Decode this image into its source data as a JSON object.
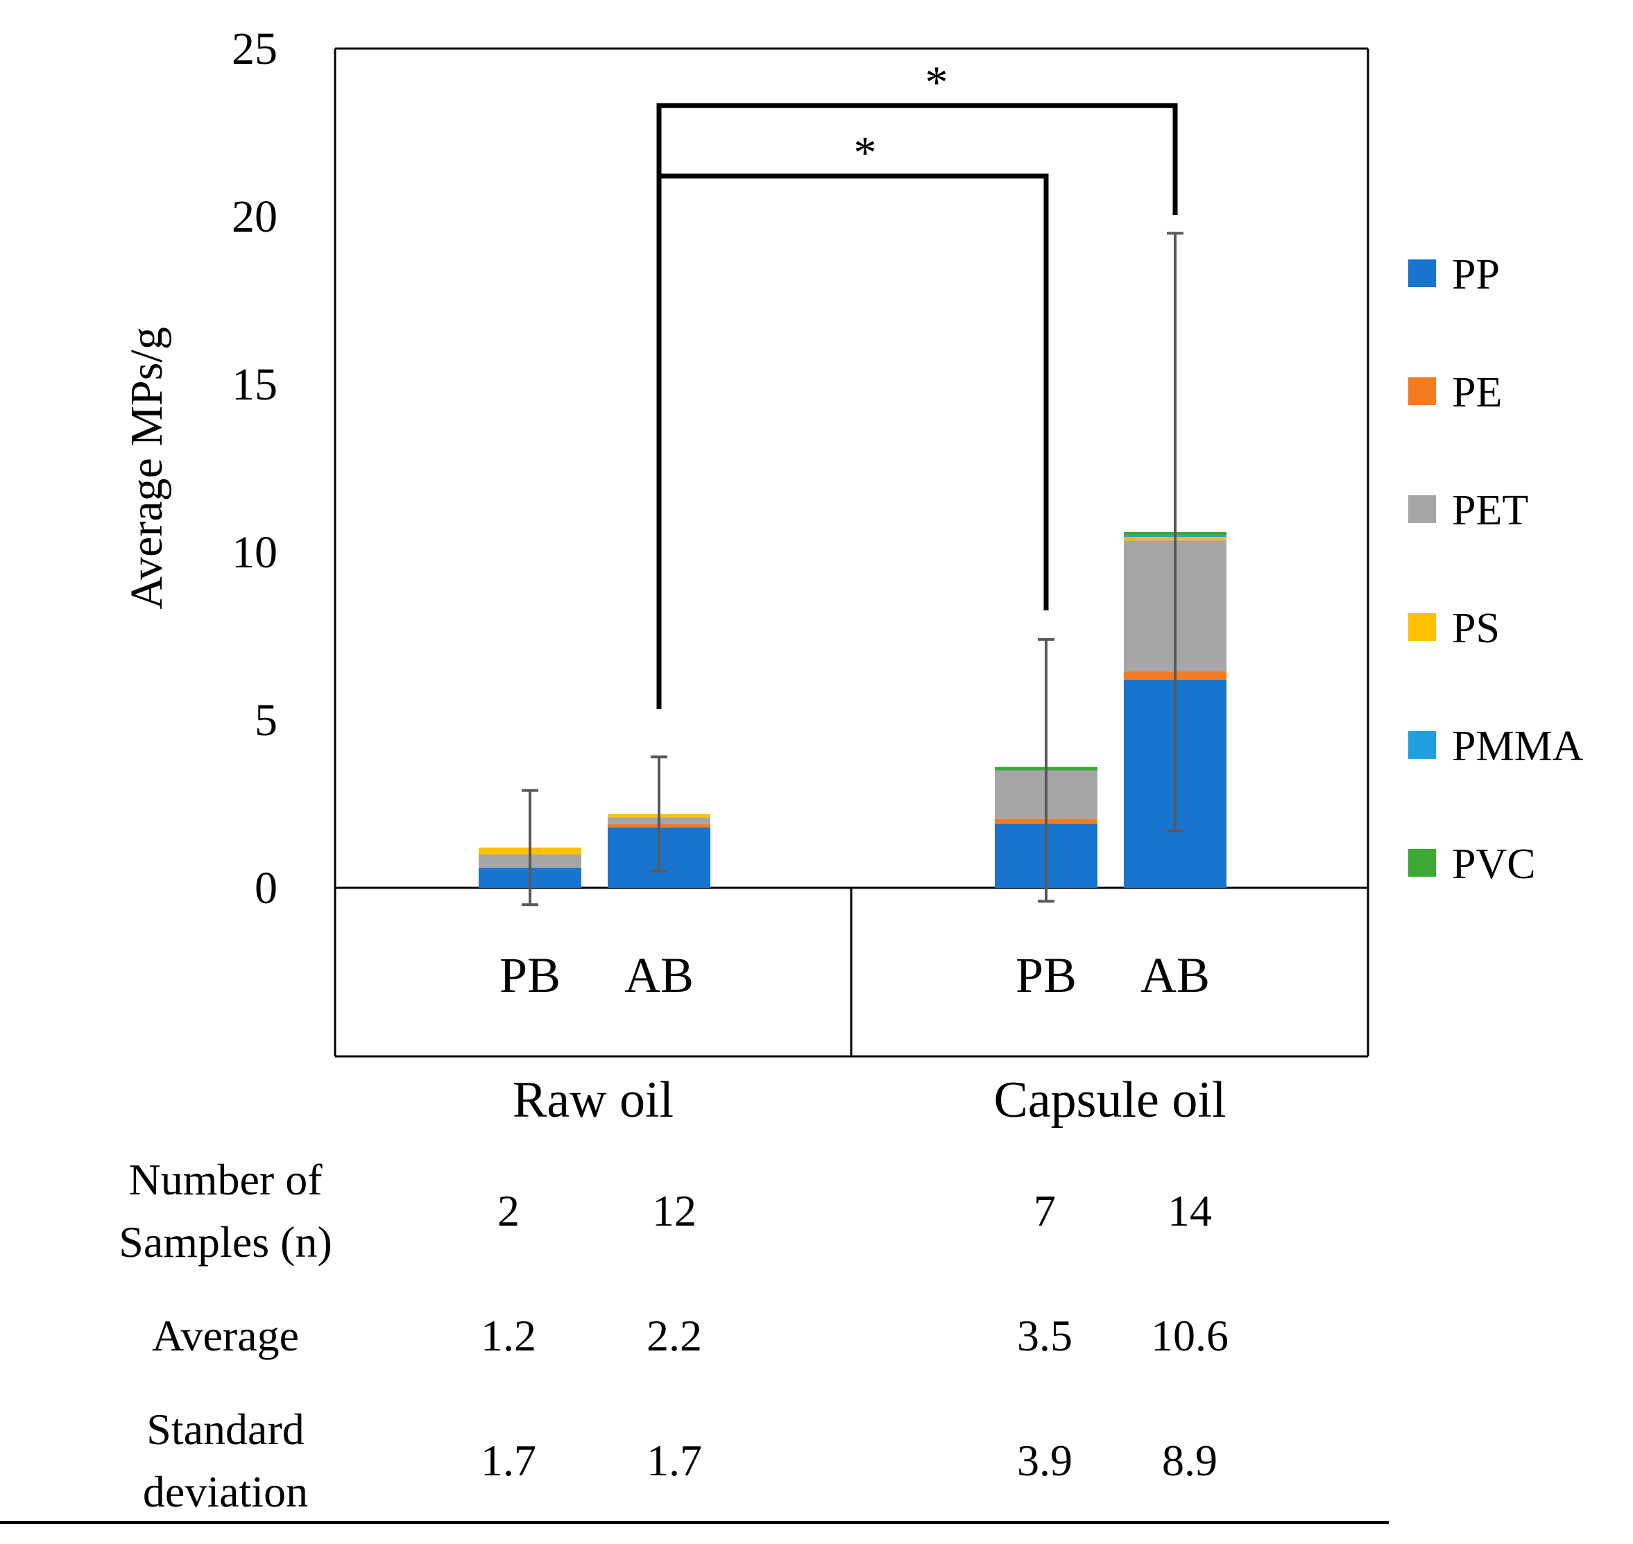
{
  "chart_data": {
    "type": "bar",
    "stacked": true,
    "ylabel": "Average MPs/g",
    "xlabel": "",
    "ylim": [
      0,
      25
    ],
    "yticks": [
      0,
      5,
      10,
      15,
      20,
      25
    ],
    "yticks_labels": [
      "0",
      "5",
      "10",
      "15",
      "20",
      "25"
    ],
    "groups": [
      {
        "label": "Raw oil",
        "categories": [
          "PB",
          "AB"
        ]
      },
      {
        "label": "Capsule oil",
        "categories": [
          "PB",
          "AB"
        ]
      }
    ],
    "categories": [
      "PB",
      "AB",
      "PB",
      "AB"
    ],
    "series": [
      {
        "name": "PP",
        "color": "#1874CD",
        "values": [
          0.6,
          1.8,
          1.9,
          6.2
        ]
      },
      {
        "name": "PE",
        "color": "#F47C20",
        "values": [
          0.0,
          0.1,
          0.15,
          0.25
        ]
      },
      {
        "name": "PET",
        "color": "#A6A6A6",
        "values": [
          0.4,
          0.2,
          1.45,
          3.9
        ]
      },
      {
        "name": "PS",
        "color": "#FFC000",
        "values": [
          0.2,
          0.1,
          0.0,
          0.1
        ]
      },
      {
        "name": "PMMA",
        "color": "#1F9FE0",
        "values": [
          0.0,
          0.0,
          0.0,
          0.05
        ]
      },
      {
        "name": "PVC",
        "color": "#3AAA35",
        "values": [
          0.0,
          0.0,
          0.1,
          0.1
        ]
      }
    ],
    "error_bars": {
      "mean": [
        1.2,
        2.2,
        3.5,
        10.6
      ],
      "sd": [
        1.7,
        1.7,
        3.9,
        8.9
      ]
    },
    "significance": [
      {
        "from_category": 1,
        "to_category": 2,
        "label": "*",
        "y": 21.2
      },
      {
        "from_category": 1,
        "to_category": 3,
        "label": "*",
        "y": 23.3
      }
    ],
    "legend_position": "right",
    "grid": false
  },
  "table": {
    "rows": [
      {
        "label_lines": [
          "Number of",
          "Samples (n)"
        ],
        "values": [
          "2",
          "12",
          "7",
          "14"
        ]
      },
      {
        "label_lines": [
          "Average"
        ],
        "values": [
          "1.2",
          "2.2",
          "3.5",
          "10.6"
        ]
      },
      {
        "label_lines": [
          "Standard",
          "deviation"
        ],
        "values": [
          "1.7",
          "1.7",
          "3.9",
          "8.9"
        ]
      }
    ]
  }
}
